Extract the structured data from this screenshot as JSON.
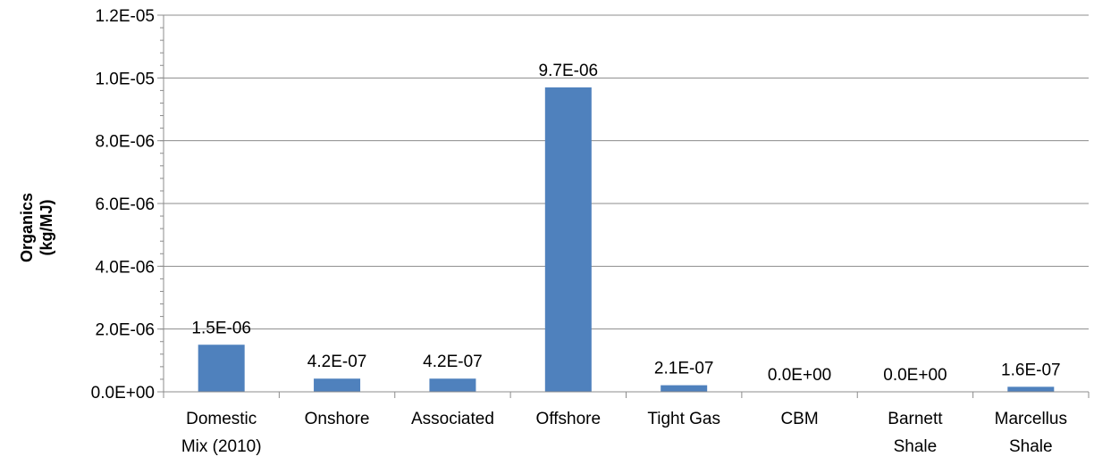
{
  "chart_data": {
    "type": "bar",
    "title": "",
    "xlabel": "",
    "ylabel": "Organics (kg/MJ)",
    "ylabel_lines": [
      "Organics",
      "(kg/MJ)"
    ],
    "categories": [
      [
        "Domestic",
        "Mix (2010)"
      ],
      [
        "Onshore"
      ],
      [
        "Associated"
      ],
      [
        "Offshore"
      ],
      [
        "Tight Gas"
      ],
      [
        "CBM"
      ],
      [
        "Barnett",
        "Shale"
      ],
      [
        "Marcellus",
        "Shale"
      ]
    ],
    "values": [
      1.5e-06,
      4.2e-07,
      4.2e-07,
      9.7e-06,
      2.1e-07,
      0.0,
      0.0,
      1.6e-07
    ],
    "data_labels": [
      "1.5E-06",
      "4.2E-07",
      "4.2E-07",
      "9.7E-06",
      "2.1E-07",
      "0.0E+00",
      "0.0E+00",
      "1.6E-07"
    ],
    "ylim": [
      0,
      1.2e-05
    ],
    "yticks": [
      0,
      2e-06,
      4e-06,
      6e-06,
      8e-06,
      1e-05,
      1.2e-05
    ],
    "ytick_labels": [
      "0.0E+00",
      "2.0E-06",
      "4.0E-06",
      "6.0E-06",
      "8.0E-06",
      "1.0E-05",
      "1.2E-05"
    ],
    "grid": true,
    "legend": "none",
    "colors": {
      "bar": "#4f81bd",
      "grid": "#8c8c8c",
      "axis": "#8c8c8c"
    }
  }
}
